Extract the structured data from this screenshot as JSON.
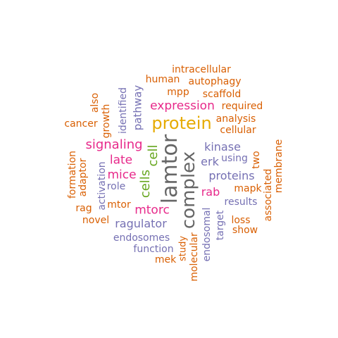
{
  "palette": {
    "orange": "#d95f02",
    "purple": "#7570b3",
    "magenta": "#e7298a",
    "green": "#66a61e",
    "gold": "#e6ab02",
    "gray": "#666666"
  },
  "words": [
    {
      "text": "lamtor",
      "color": "gray"
    },
    {
      "text": "complex",
      "color": "gray"
    },
    {
      "text": "protein",
      "color": "gold"
    },
    {
      "text": "expression",
      "color": "magenta"
    },
    {
      "text": "signaling",
      "color": "magenta"
    },
    {
      "text": "cell",
      "color": "green"
    },
    {
      "text": "cells",
      "color": "green"
    },
    {
      "text": "late",
      "color": "magenta"
    },
    {
      "text": "mice",
      "color": "magenta"
    },
    {
      "text": "mtorc",
      "color": "magenta"
    },
    {
      "text": "rab",
      "color": "magenta"
    },
    {
      "text": "kinase",
      "color": "purple"
    },
    {
      "text": "proteins",
      "color": "purple"
    },
    {
      "text": "erk",
      "color": "purple"
    },
    {
      "text": "using",
      "color": "purple"
    },
    {
      "text": "ragulator",
      "color": "purple"
    },
    {
      "text": "endosomes",
      "color": "purple"
    },
    {
      "text": "function",
      "color": "purple"
    },
    {
      "text": "results",
      "color": "purple"
    },
    {
      "text": "pathway",
      "color": "purple"
    },
    {
      "text": "identified",
      "color": "purple"
    },
    {
      "text": "activation",
      "color": "purple"
    },
    {
      "text": "role",
      "color": "purple"
    },
    {
      "text": "endosomal",
      "color": "purple"
    },
    {
      "text": "target",
      "color": "purple"
    },
    {
      "text": "intracellular",
      "color": "orange"
    },
    {
      "text": "human",
      "color": "orange"
    },
    {
      "text": "autophagy",
      "color": "orange"
    },
    {
      "text": "mpp",
      "color": "orange"
    },
    {
      "text": "scaffold",
      "color": "orange"
    },
    {
      "text": "also",
      "color": "orange"
    },
    {
      "text": "required",
      "color": "orange"
    },
    {
      "text": "analysis",
      "color": "orange"
    },
    {
      "text": "cancer",
      "color": "orange"
    },
    {
      "text": "growth",
      "color": "orange"
    },
    {
      "text": "cellular",
      "color": "orange"
    },
    {
      "text": "membrane",
      "color": "orange"
    },
    {
      "text": "two",
      "color": "orange"
    },
    {
      "text": "formation",
      "color": "orange"
    },
    {
      "text": "adaptor",
      "color": "orange"
    },
    {
      "text": "mapk",
      "color": "orange"
    },
    {
      "text": "associated",
      "color": "orange"
    },
    {
      "text": "rag",
      "color": "orange"
    },
    {
      "text": "mtor",
      "color": "orange"
    },
    {
      "text": "novel",
      "color": "orange"
    },
    {
      "text": "loss",
      "color": "orange"
    },
    {
      "text": "show",
      "color": "orange"
    },
    {
      "text": "study",
      "color": "orange"
    },
    {
      "text": "molecular",
      "color": "orange"
    },
    {
      "text": "mek",
      "color": "orange"
    }
  ]
}
